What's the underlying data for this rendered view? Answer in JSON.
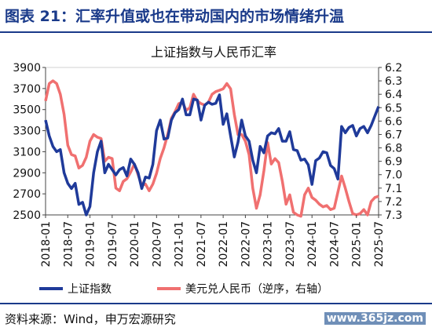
{
  "figure": {
    "title": "图表 21：汇率升值或也在带动国内的市场情绪升温",
    "source": "资料来源：Wind，申万宏源研究",
    "watermark": "www.365jz.com"
  },
  "chart_data": {
    "type": "line",
    "title": "上证指数与人民币汇率",
    "x_ticks": [
      "2018-01",
      "2018-07",
      "2019-01",
      "2019-07",
      "2020-01",
      "2020-07",
      "2021-01",
      "2021-07",
      "2022-01",
      "2022-07",
      "2023-01",
      "2023-07",
      "2024-01",
      "2024-07",
      "2025-01",
      "2025-07"
    ],
    "y_left": {
      "min": 2500,
      "max": 3900,
      "ticks": [
        2500,
        2700,
        2900,
        3100,
        3300,
        3500,
        3700,
        3900
      ]
    },
    "y_right": {
      "min": 6.2,
      "max": 7.3,
      "reversed": true,
      "ticks": [
        "6.2",
        "6.3",
        "6.4",
        "6.5",
        "6.6",
        "6.7",
        "6.8",
        "6.9",
        "7.0",
        "7.1",
        "7.2",
        "7.3"
      ]
    },
    "legend_placement": "bottom",
    "colors": {
      "shanghai": "#1f3a9a",
      "usdcny": "#f07070"
    },
    "series": [
      {
        "name": "上证指数",
        "axis": "left",
        "data": [
          [
            "2018-01",
            3400
          ],
          [
            "2018-02",
            3250
          ],
          [
            "2018-03",
            3150
          ],
          [
            "2018-04",
            3100
          ],
          [
            "2018-05",
            3120
          ],
          [
            "2018-06",
            2900
          ],
          [
            "2018-07",
            2800
          ],
          [
            "2018-08",
            2750
          ],
          [
            "2018-09",
            2800
          ],
          [
            "2018-10",
            2600
          ],
          [
            "2018-11",
            2620
          ],
          [
            "2018-12",
            2500
          ],
          [
            "2019-01",
            2580
          ],
          [
            "2019-02",
            2900
          ],
          [
            "2019-03",
            3100
          ],
          [
            "2019-04",
            3200
          ],
          [
            "2019-05",
            2900
          ],
          [
            "2019-06",
            2980
          ],
          [
            "2019-07",
            2930
          ],
          [
            "2019-08",
            2880
          ],
          [
            "2019-09",
            2930
          ],
          [
            "2019-10",
            2950
          ],
          [
            "2019-11",
            2870
          ],
          [
            "2019-12",
            3030
          ],
          [
            "2020-01",
            2980
          ],
          [
            "2020-02",
            2900
          ],
          [
            "2020-03",
            2750
          ],
          [
            "2020-04",
            2860
          ],
          [
            "2020-05",
            2850
          ],
          [
            "2020-06",
            2980
          ],
          [
            "2020-07",
            3300
          ],
          [
            "2020-08",
            3400
          ],
          [
            "2020-09",
            3220
          ],
          [
            "2020-10",
            3230
          ],
          [
            "2020-11",
            3400
          ],
          [
            "2020-12",
            3470
          ],
          [
            "2021-01",
            3500
          ],
          [
            "2021-02",
            3600
          ],
          [
            "2021-03",
            3450
          ],
          [
            "2021-04",
            3450
          ],
          [
            "2021-05",
            3600
          ],
          [
            "2021-06",
            3590
          ],
          [
            "2021-07",
            3400
          ],
          [
            "2021-08",
            3540
          ],
          [
            "2021-09",
            3570
          ],
          [
            "2021-10",
            3550
          ],
          [
            "2021-11",
            3560
          ],
          [
            "2021-12",
            3640
          ],
          [
            "2022-01",
            3360
          ],
          [
            "2022-02",
            3460
          ],
          [
            "2022-03",
            3250
          ],
          [
            "2022-04",
            3050
          ],
          [
            "2022-05",
            3190
          ],
          [
            "2022-06",
            3400
          ],
          [
            "2022-07",
            3250
          ],
          [
            "2022-08",
            3200
          ],
          [
            "2022-09",
            3020
          ],
          [
            "2022-10",
            2900
          ],
          [
            "2022-11",
            3150
          ],
          [
            "2022-12",
            3090
          ],
          [
            "2023-01",
            3250
          ],
          [
            "2023-02",
            3280
          ],
          [
            "2023-03",
            3270
          ],
          [
            "2023-04",
            3320
          ],
          [
            "2023-05",
            3200
          ],
          [
            "2023-06",
            3200
          ],
          [
            "2023-07",
            3290
          ],
          [
            "2023-08",
            3120
          ],
          [
            "2023-09",
            3110
          ],
          [
            "2023-10",
            3020
          ],
          [
            "2023-11",
            3030
          ],
          [
            "2023-12",
            2975
          ],
          [
            "2024-01",
            2790
          ],
          [
            "2024-02",
            3015
          ],
          [
            "2024-03",
            3040
          ],
          [
            "2024-04",
            3100
          ],
          [
            "2024-05",
            3090
          ],
          [
            "2024-06",
            2970
          ],
          [
            "2024-07",
            2940
          ],
          [
            "2024-08",
            2840
          ],
          [
            "2024-09",
            3340
          ],
          [
            "2024-10",
            3280
          ],
          [
            "2024-11",
            3330
          ],
          [
            "2024-12",
            3350
          ],
          [
            "2025-01",
            3250
          ],
          [
            "2025-02",
            3320
          ],
          [
            "2025-03",
            3340
          ],
          [
            "2025-04",
            3280
          ],
          [
            "2025-05",
            3350
          ],
          [
            "2025-06",
            3440
          ],
          [
            "2025-07",
            3530
          ]
        ]
      },
      {
        "name": "美元兑人民币（逆序，右轴）",
        "axis": "right",
        "data": [
          [
            "2018-01",
            6.45
          ],
          [
            "2018-02",
            6.32
          ],
          [
            "2018-03",
            6.3
          ],
          [
            "2018-04",
            6.32
          ],
          [
            "2018-05",
            6.4
          ],
          [
            "2018-06",
            6.55
          ],
          [
            "2018-07",
            6.78
          ],
          [
            "2018-08",
            6.85
          ],
          [
            "2018-09",
            6.86
          ],
          [
            "2018-10",
            6.95
          ],
          [
            "2018-11",
            6.93
          ],
          [
            "2018-12",
            6.87
          ],
          [
            "2019-01",
            6.75
          ],
          [
            "2019-02",
            6.7
          ],
          [
            "2019-03",
            6.72
          ],
          [
            "2019-04",
            6.73
          ],
          [
            "2019-05",
            6.9
          ],
          [
            "2019-06",
            6.87
          ],
          [
            "2019-07",
            6.88
          ],
          [
            "2019-08",
            7.1
          ],
          [
            "2019-09",
            7.12
          ],
          [
            "2019-10",
            7.05
          ],
          [
            "2019-11",
            7.03
          ],
          [
            "2019-12",
            6.98
          ],
          [
            "2020-01",
            6.92
          ],
          [
            "2020-02",
            7.0
          ],
          [
            "2020-03",
            7.08
          ],
          [
            "2020-04",
            7.07
          ],
          [
            "2020-05",
            7.12
          ],
          [
            "2020-06",
            7.07
          ],
          [
            "2020-07",
            6.99
          ],
          [
            "2020-08",
            6.88
          ],
          [
            "2020-09",
            6.8
          ],
          [
            "2020-10",
            6.7
          ],
          [
            "2020-11",
            6.58
          ],
          [
            "2020-12",
            6.53
          ],
          [
            "2021-01",
            6.47
          ],
          [
            "2021-02",
            6.46
          ],
          [
            "2021-03",
            6.52
          ],
          [
            "2021-04",
            6.5
          ],
          [
            "2021-05",
            6.4
          ],
          [
            "2021-06",
            6.45
          ],
          [
            "2021-07",
            6.47
          ],
          [
            "2021-08",
            6.48
          ],
          [
            "2021-09",
            6.46
          ],
          [
            "2021-10",
            6.4
          ],
          [
            "2021-11",
            6.38
          ],
          [
            "2021-12",
            6.37
          ],
          [
            "2022-01",
            6.36
          ],
          [
            "2022-02",
            6.32
          ],
          [
            "2022-03",
            6.36
          ],
          [
            "2022-04",
            6.55
          ],
          [
            "2022-05",
            6.7
          ],
          [
            "2022-06",
            6.7
          ],
          [
            "2022-07",
            6.75
          ],
          [
            "2022-08",
            6.85
          ],
          [
            "2022-09",
            7.1
          ],
          [
            "2022-10",
            7.25
          ],
          [
            "2022-11",
            7.15
          ],
          [
            "2022-12",
            6.97
          ],
          [
            "2023-01",
            6.76
          ],
          [
            "2023-02",
            6.92
          ],
          [
            "2023-03",
            6.88
          ],
          [
            "2023-04",
            6.91
          ],
          [
            "2023-05",
            7.05
          ],
          [
            "2023-06",
            7.22
          ],
          [
            "2023-07",
            7.15
          ],
          [
            "2023-08",
            7.28
          ],
          [
            "2023-09",
            7.3
          ],
          [
            "2023-10",
            7.31
          ],
          [
            "2023-11",
            7.15
          ],
          [
            "2023-12",
            7.1
          ],
          [
            "2024-01",
            7.17
          ],
          [
            "2024-02",
            7.19
          ],
          [
            "2024-03",
            7.22
          ],
          [
            "2024-04",
            7.24
          ],
          [
            "2024-05",
            7.23
          ],
          [
            "2024-06",
            7.26
          ],
          [
            "2024-07",
            7.25
          ],
          [
            "2024-08",
            7.13
          ],
          [
            "2024-09",
            7.01
          ],
          [
            "2024-10",
            7.1
          ],
          [
            "2024-11",
            7.2
          ],
          [
            "2024-12",
            7.29
          ],
          [
            "2025-01",
            7.3
          ],
          [
            "2025-02",
            7.29
          ],
          [
            "2025-03",
            7.26
          ],
          [
            "2025-04",
            7.3
          ],
          [
            "2025-05",
            7.2
          ],
          [
            "2025-06",
            7.17
          ],
          [
            "2025-07",
            7.16
          ]
        ]
      }
    ]
  }
}
